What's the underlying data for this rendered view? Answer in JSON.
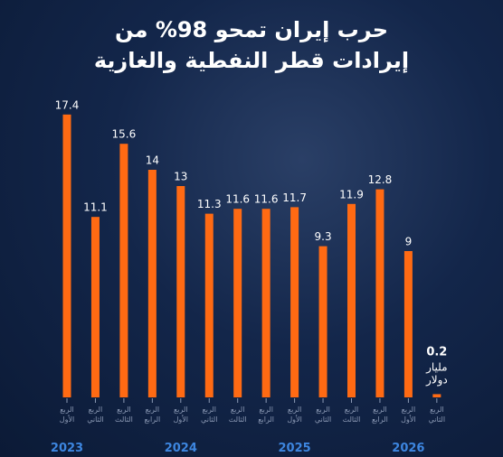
{
  "chart_data": {
    "type": "bar",
    "title": [
      "حرب إيران تمحو 98% من",
      "إيرادات قطر النفطية والغازية"
    ],
    "categories": [
      "الربع الأول",
      "الربع الثاني",
      "الربع الثالث",
      "الربع الرابع",
      "الربع الأول",
      "الربع الثاني",
      "الربع الثالث",
      "الربع الرابع",
      "الربع الأول",
      "الربع الثاني",
      "الربع الثالث",
      "الربع الرابع",
      "الربع الأول",
      "الربع الثاني"
    ],
    "values": [
      17.4,
      11.1,
      15.6,
      14,
      13,
      11.3,
      11.6,
      11.6,
      11.7,
      9.3,
      11.9,
      12.8,
      9,
      0.2
    ],
    "years": [
      "2023",
      "2024",
      "2025",
      "2026"
    ],
    "unit": [
      "مليار",
      "دولار"
    ],
    "color": "#ff6a13",
    "ylim": [
      0,
      20
    ]
  }
}
